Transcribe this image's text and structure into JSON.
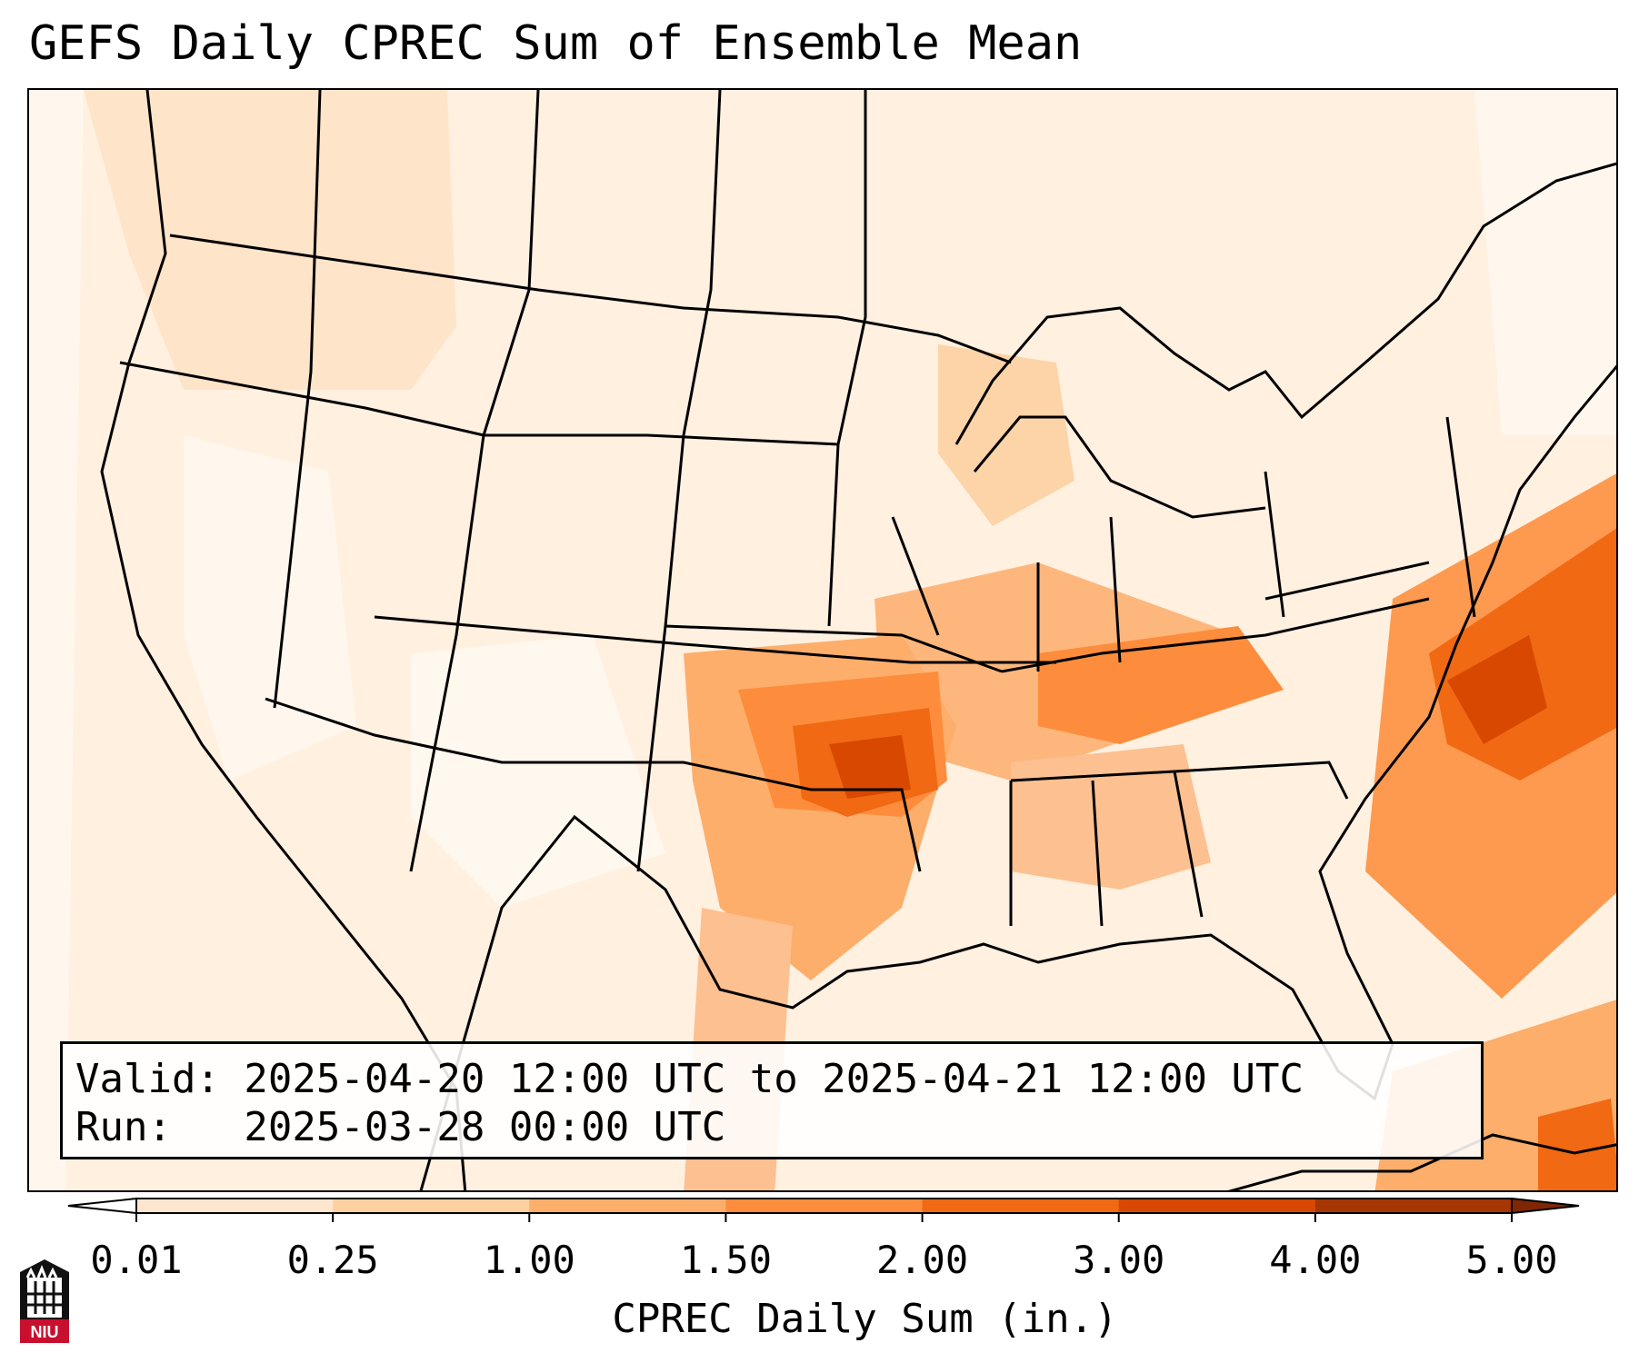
{
  "title": "GEFS Daily CPREC Sum of Ensemble Mean",
  "info": {
    "valid": "Valid: 2025-04-20 12:00 UTC to 2025-04-21 12:00 UTC",
    "run": "Run:   2025-03-28 00:00 UTC"
  },
  "colorbar": {
    "label": "CPREC Daily Sum (in.)",
    "ticks": [
      "0.01",
      "0.25",
      "1.00",
      "1.50",
      "2.00",
      "3.00",
      "4.00",
      "5.00"
    ],
    "colors": [
      "#fff5eb",
      "#fee6ce",
      "#fdd0a2",
      "#fdae6b",
      "#fd8d3c",
      "#f16913",
      "#d94801",
      "#a63603"
    ]
  },
  "logo": {
    "text": "NIU",
    "color": "#c8102e"
  },
  "icons": {
    "logo": "niu-logo-icon",
    "under_arrow": "colorbar-under-arrow-icon",
    "over_arrow": "colorbar-over-arrow-icon"
  }
}
